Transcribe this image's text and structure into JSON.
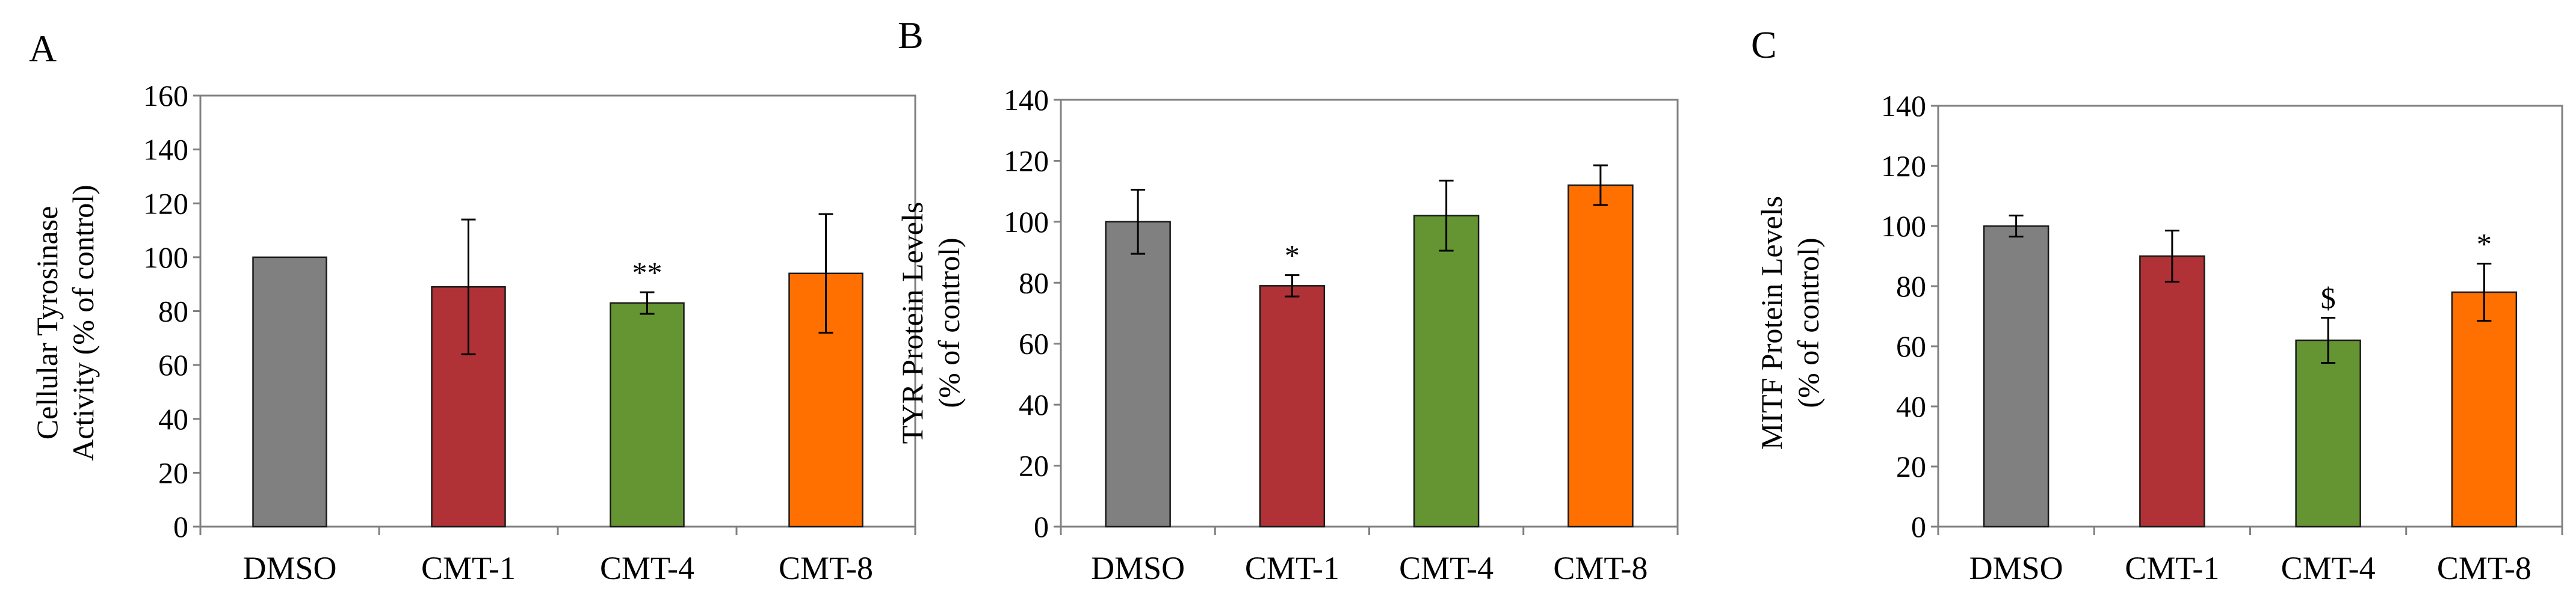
{
  "colors": {
    "DMSO": "#808080",
    "CMT-1": "#B03236",
    "CMT-4": "#659533",
    "CMT-8": "#FF7000",
    "axis": "#808080",
    "bar_border": "#1a1a1a"
  },
  "chart_data": [
    {
      "type": "bar",
      "panel": "A",
      "categories": [
        "DMSO",
        "CMT-1",
        "CMT-4",
        "CMT-8"
      ],
      "values": [
        100,
        89,
        83,
        94
      ],
      "errors": [
        0,
        25,
        4,
        22
      ],
      "annotations": [
        "",
        "",
        "**",
        ""
      ],
      "ylabel": [
        "Cellular Tyrosinase",
        "Activity  (% of control)"
      ],
      "ylim": [
        0,
        160
      ],
      "yticks": [
        "0",
        "20",
        "40",
        "60",
        "80",
        "100",
        "120",
        "140",
        "160"
      ],
      "grid": false,
      "legend": "none"
    },
    {
      "type": "bar",
      "panel": "B",
      "categories": [
        "DMSO",
        "CMT-1",
        "CMT-4",
        "CMT-8"
      ],
      "values": [
        100,
        79,
        102,
        112
      ],
      "errors": [
        10.5,
        3.5,
        11.5,
        6.5
      ],
      "annotations": [
        "",
        "*",
        "",
        ""
      ],
      "ylabel": [
        "TYR Protein Levels",
        "(% of control)"
      ],
      "ylim": [
        0,
        140
      ],
      "yticks": [
        "0",
        "20",
        "40",
        "60",
        "80",
        "100",
        "120",
        "140"
      ],
      "grid": false,
      "legend": "none"
    },
    {
      "type": "bar",
      "panel": "C",
      "categories": [
        "DMSO",
        "CMT-1",
        "CMT-4",
        "CMT-8"
      ],
      "values": [
        100,
        90,
        62,
        78
      ],
      "errors": [
        3.5,
        8.5,
        7.5,
        9.5
      ],
      "annotations": [
        "",
        "",
        "$",
        "*"
      ],
      "ylabel": [
        "MITF Protein Levels",
        "(% of control)"
      ],
      "ylim": [
        0,
        140
      ],
      "yticks": [
        "0",
        "20",
        "40",
        "60",
        "80",
        "100",
        "120",
        "140"
      ],
      "grid": false,
      "legend": "none"
    }
  ]
}
